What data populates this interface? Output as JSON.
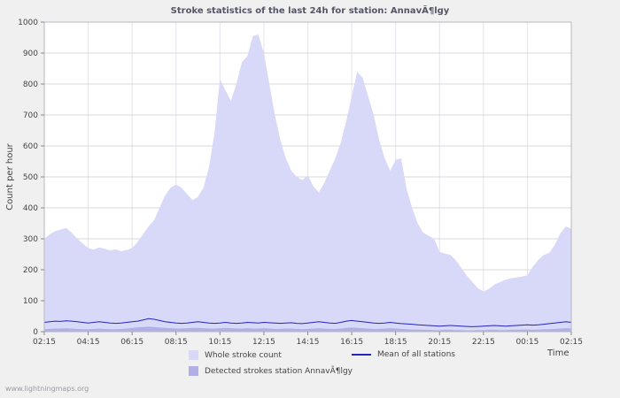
{
  "footer": {
    "watermark": "www.lightningmaps.org"
  },
  "colors": {
    "background": "#f0f0f0",
    "plot_background": "#ffffff",
    "grid_horizontal": "#d9d9d9",
    "grid_vertical": "#e3e3ec",
    "plot_border": "#b8b8c0",
    "tick": "#888888"
  },
  "chart_data": {
    "type": "area",
    "title": "Stroke statistics of the last 24h for station: AnnavÃ¶lgy",
    "xlabel": "Time",
    "ylabel": "Count per hour",
    "ylim": [
      0,
      1000
    ],
    "y_ticks": [
      0,
      100,
      200,
      300,
      400,
      500,
      600,
      700,
      800,
      900,
      1000
    ],
    "x_tick_labels": [
      "02:15",
      "04:15",
      "06:15",
      "08:15",
      "10:15",
      "12:15",
      "14:15",
      "16:15",
      "18:15",
      "20:15",
      "22:15",
      "00:15",
      "02:15"
    ],
    "x_tick_indices": [
      0,
      8,
      16,
      24,
      32,
      40,
      48,
      56,
      64,
      72,
      80,
      88,
      96
    ],
    "sample_interval_minutes": 15,
    "legend_position": "bottom",
    "grid": true,
    "series": [
      {
        "name": "Whole stroke count",
        "type": "area",
        "color": "#d8d8f8",
        "values": [
          300,
          315,
          325,
          330,
          335,
          320,
          300,
          285,
          270,
          265,
          272,
          268,
          262,
          266,
          260,
          264,
          270,
          290,
          315,
          340,
          360,
          400,
          440,
          465,
          475,
          465,
          445,
          425,
          435,
          465,
          530,
          640,
          815,
          780,
          745,
          800,
          870,
          890,
          955,
          960,
          900,
          800,
          700,
          620,
          560,
          520,
          500,
          490,
          505,
          470,
          450,
          480,
          520,
          560,
          610,
          680,
          760,
          840,
          820,
          760,
          700,
          620,
          560,
          520,
          555,
          560,
          460,
          400,
          350,
          320,
          310,
          300,
          258,
          252,
          248,
          230,
          205,
          180,
          160,
          140,
          130,
          138,
          152,
          160,
          168,
          172,
          175,
          178,
          182,
          210,
          232,
          248,
          255,
          280,
          318,
          340,
          332
        ]
      },
      {
        "name": "Detected strokes station AnnavÃ¶lgy",
        "type": "area",
        "color": "#b0b0e6",
        "values": [
          8,
          9,
          10,
          10,
          11,
          10,
          9,
          8,
          8,
          9,
          10,
          9,
          8,
          8,
          9,
          10,
          12,
          14,
          15,
          16,
          15,
          13,
          12,
          11,
          10,
          10,
          11,
          12,
          12,
          11,
          10,
          10,
          11,
          12,
          11,
          10,
          10,
          11,
          10,
          10,
          11,
          10,
          9,
          9,
          10,
          10,
          9,
          8,
          9,
          10,
          11,
          10,
          9,
          9,
          10,
          12,
          13,
          12,
          11,
          10,
          9,
          9,
          10,
          11,
          10,
          9,
          8,
          7,
          7,
          6,
          6,
          5,
          5,
          6,
          6,
          5,
          5,
          4,
          4,
          5,
          5,
          6,
          6,
          5,
          5,
          6,
          6,
          7,
          7,
          6,
          7,
          8,
          8,
          9,
          10,
          11,
          10
        ]
      },
      {
        "name": "Mean of all stations",
        "type": "line",
        "color": "#2525bd",
        "values": [
          30,
          32,
          34,
          33,
          35,
          34,
          32,
          30,
          28,
          30,
          32,
          30,
          28,
          27,
          28,
          30,
          32,
          34,
          38,
          42,
          40,
          36,
          32,
          30,
          28,
          27,
          28,
          30,
          32,
          30,
          28,
          27,
          28,
          30,
          28,
          27,
          28,
          30,
          29,
          28,
          30,
          29,
          28,
          27,
          28,
          29,
          27,
          26,
          28,
          30,
          32,
          30,
          28,
          27,
          30,
          34,
          36,
          34,
          32,
          30,
          28,
          27,
          28,
          30,
          28,
          26,
          25,
          24,
          22,
          21,
          20,
          19,
          18,
          19,
          20,
          19,
          18,
          17,
          16,
          17,
          18,
          19,
          20,
          19,
          18,
          19,
          20,
          21,
          22,
          21,
          22,
          24,
          26,
          28,
          30,
          32,
          30
        ]
      }
    ]
  }
}
